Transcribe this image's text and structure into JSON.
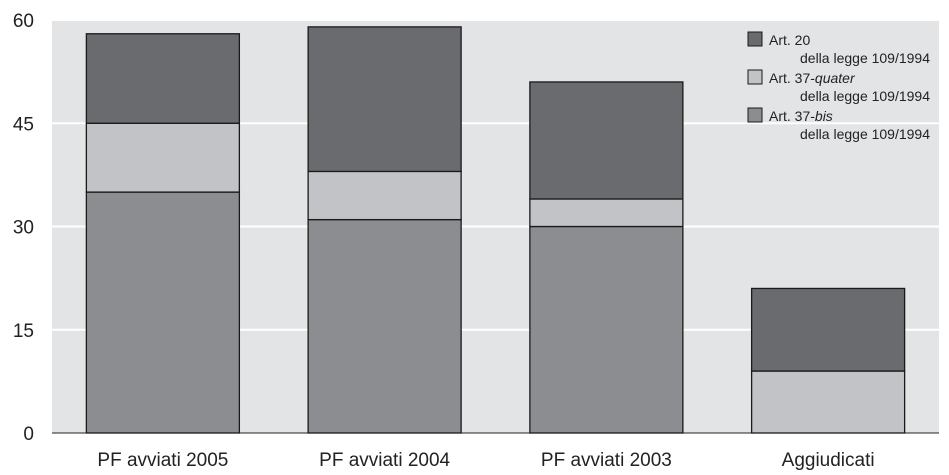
{
  "chart_data": {
    "type": "bar",
    "stacked": true,
    "categories": [
      "PF avviati 2005",
      "PF avviati 2004",
      "PF avviati 2003",
      "Aggiudicati"
    ],
    "series": [
      {
        "name": "Art. 37-bis della legge 109/1994",
        "name_main": "Art. 37-",
        "name_italic": "bis",
        "name_sub": "della legge 109/1994",
        "color": "#8c8d90",
        "values": [
          35,
          31,
          30,
          0
        ]
      },
      {
        "name": "Art. 37-quater della legge 109/1994",
        "name_main": "Art. 37-",
        "name_italic": "quater",
        "name_sub": "della legge 109/1994",
        "color": "#c2c3c6",
        "values": [
          10,
          7,
          4,
          9
        ]
      },
      {
        "name": "Art. 20 della legge 109/1994",
        "name_main": "Art. 20",
        "name_italic": "",
        "name_sub": "della legge 109/1994",
        "color": "#6a6b6f",
        "values": [
          13,
          21,
          17,
          12
        ]
      }
    ],
    "legend_order": [
      2,
      1,
      0
    ],
    "ylim": [
      0,
      60
    ],
    "yticks": [
      0,
      15,
      30,
      45,
      60
    ],
    "grid": true,
    "legend_position": "top-right",
    "plot_background": "#e3e4e6",
    "grid_color": "#ffffff"
  }
}
